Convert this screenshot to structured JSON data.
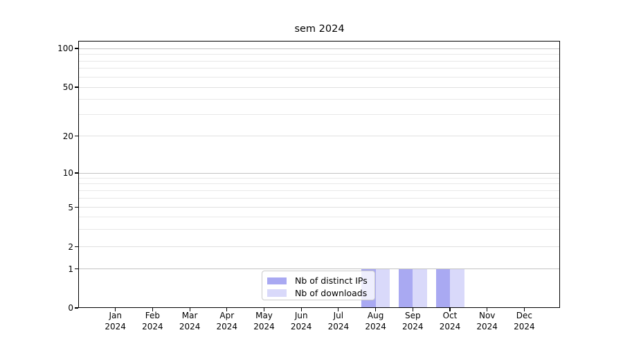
{
  "chart_data": {
    "type": "bar",
    "title": "sem 2024",
    "categories": [
      "Jan",
      "Feb",
      "Mar",
      "Apr",
      "May",
      "Jun",
      "Jul",
      "Aug",
      "Sep",
      "Oct",
      "Nov",
      "Dec"
    ],
    "category_year": "2024",
    "series": [
      {
        "name": "Nb of distinct IPs",
        "color": "#a9a9f2",
        "values": [
          0,
          0,
          0,
          0,
          0,
          0,
          0,
          1,
          1,
          1,
          0,
          0
        ]
      },
      {
        "name": "Nb of downloads",
        "color": "#d9d9fa",
        "values": [
          0,
          0,
          0,
          0,
          0,
          0,
          0,
          1,
          1,
          1,
          0,
          0
        ]
      }
    ],
    "yscale": "symlog",
    "ylim": [
      0,
      115
    ],
    "yticks": [
      0,
      1,
      2,
      5,
      10,
      20,
      50,
      100
    ],
    "minor_gridline_values": [
      3,
      4,
      6,
      7,
      8,
      9,
      30,
      40,
      60,
      70,
      80,
      90
    ],
    "decade_gridline_values": [
      1,
      10,
      100
    ],
    "grid": true,
    "legend_position": "lower center-left, inside plot"
  },
  "legend": {
    "items": [
      {
        "label": "Nb of distinct IPs",
        "color": "#a9a9f2"
      },
      {
        "label": "Nb of downloads",
        "color": "#d9d9fa"
      }
    ]
  }
}
